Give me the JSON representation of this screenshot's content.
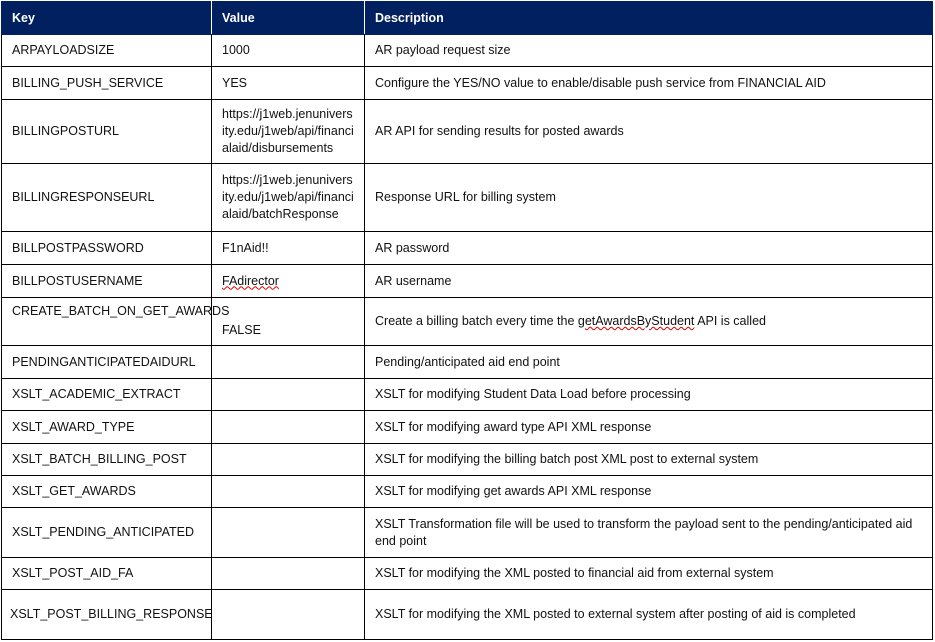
{
  "headers": {
    "key": "Key",
    "value": "Value",
    "description": "Description"
  },
  "rows": [
    {
      "key": "ARPAYLOADSIZE",
      "value": "1000",
      "description": "AR payload request size"
    },
    {
      "key": "BILLING_PUSH_SERVICE",
      "value": "YES",
      "description": "Configure the YES/NO value to enable/disable push service from FINANCIAL AID"
    },
    {
      "key": "BILLINGPOSTURL",
      "value": "https://j1web.jenuniversity.edu/j1web/api/financialaid/disbursements",
      "description": "AR API for sending results for posted awards"
    },
    {
      "key": "BILLINGRESPONSEURL",
      "value": "https://j1web.jenuniversity.edu/j1web/api/financialaid/batchResponse",
      "description": "Response URL for billing system"
    },
    {
      "key": "BILLPOSTPASSWORD",
      "value": "F1nAid!!",
      "description": "AR password"
    },
    {
      "key": "BILLPOSTUSERNAME",
      "value": "FAdirector",
      "description": "AR username"
    },
    {
      "key": "CREATE_BATCH_ON_GET_AWARDS",
      "value": "FALSE",
      "description": "Create a billing batch every time the getAwardsByStudent API is called"
    },
    {
      "key": "PENDINGANTICIPATEDAIDURL",
      "value": "",
      "description": "Pending/anticipated aid end point"
    },
    {
      "key": "XSLT_ACADEMIC_EXTRACT",
      "value": "",
      "description": "XSLT for modifying Student Data Load before processing"
    },
    {
      "key": "XSLT_AWARD_TYPE",
      "value": "",
      "description": "XSLT for modifying award type API XML response"
    },
    {
      "key": "XSLT_BATCH_BILLING_POST",
      "value": "",
      "description": "XSLT for modifying the billing batch post XML post to external system"
    },
    {
      "key": "XSLT_GET_AWARDS",
      "value": "",
      "description": "XSLT for modifying get awards API XML response"
    },
    {
      "key": "XSLT_PENDING_ANTICIPATED",
      "value": "",
      "description": "XSLT Transformation file will be used to transform the payload sent to the pending/anticipated aid end point"
    },
    {
      "key": "XSLT_POST_AID_FA",
      "value": "",
      "description": "XSLT for modifying the XML posted to financial aid from external system"
    },
    {
      "key": "XSLT_POST_BILLING_RESPONSE",
      "value": "",
      "description": "XSLT for modifying the XML posted to external system after posting of aid is completed"
    }
  ]
}
